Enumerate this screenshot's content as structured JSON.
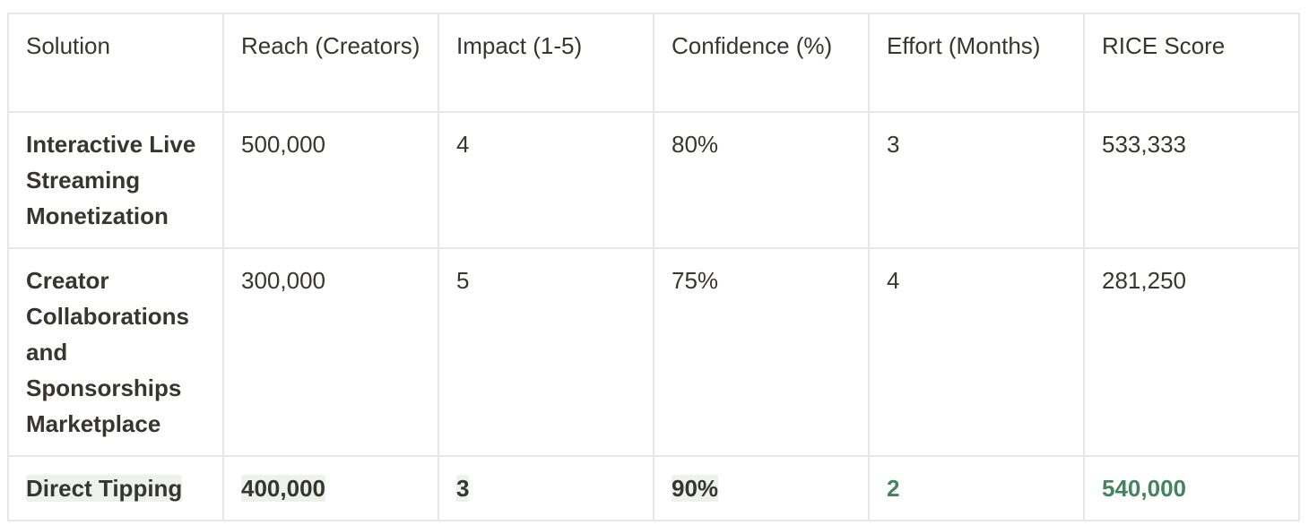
{
  "table": {
    "header": [
      "Solution",
      "Reach (Creators)",
      "Impact (1-5)",
      "Confidence (%)",
      "Effort (Months)",
      "RICE Score"
    ],
    "rows": [
      [
        "Interactive Live Streaming Monetization",
        "500,000",
        "4",
        "80%",
        "3",
        "533,333"
      ],
      [
        "Creator Collaborations and Sponsorships Marketplace",
        "300,000",
        "5",
        "75%",
        "4",
        "281,250"
      ],
      [
        "Direct Tipping",
        "400,000",
        "3",
        "90%",
        "2",
        "540,000"
      ]
    ]
  }
}
